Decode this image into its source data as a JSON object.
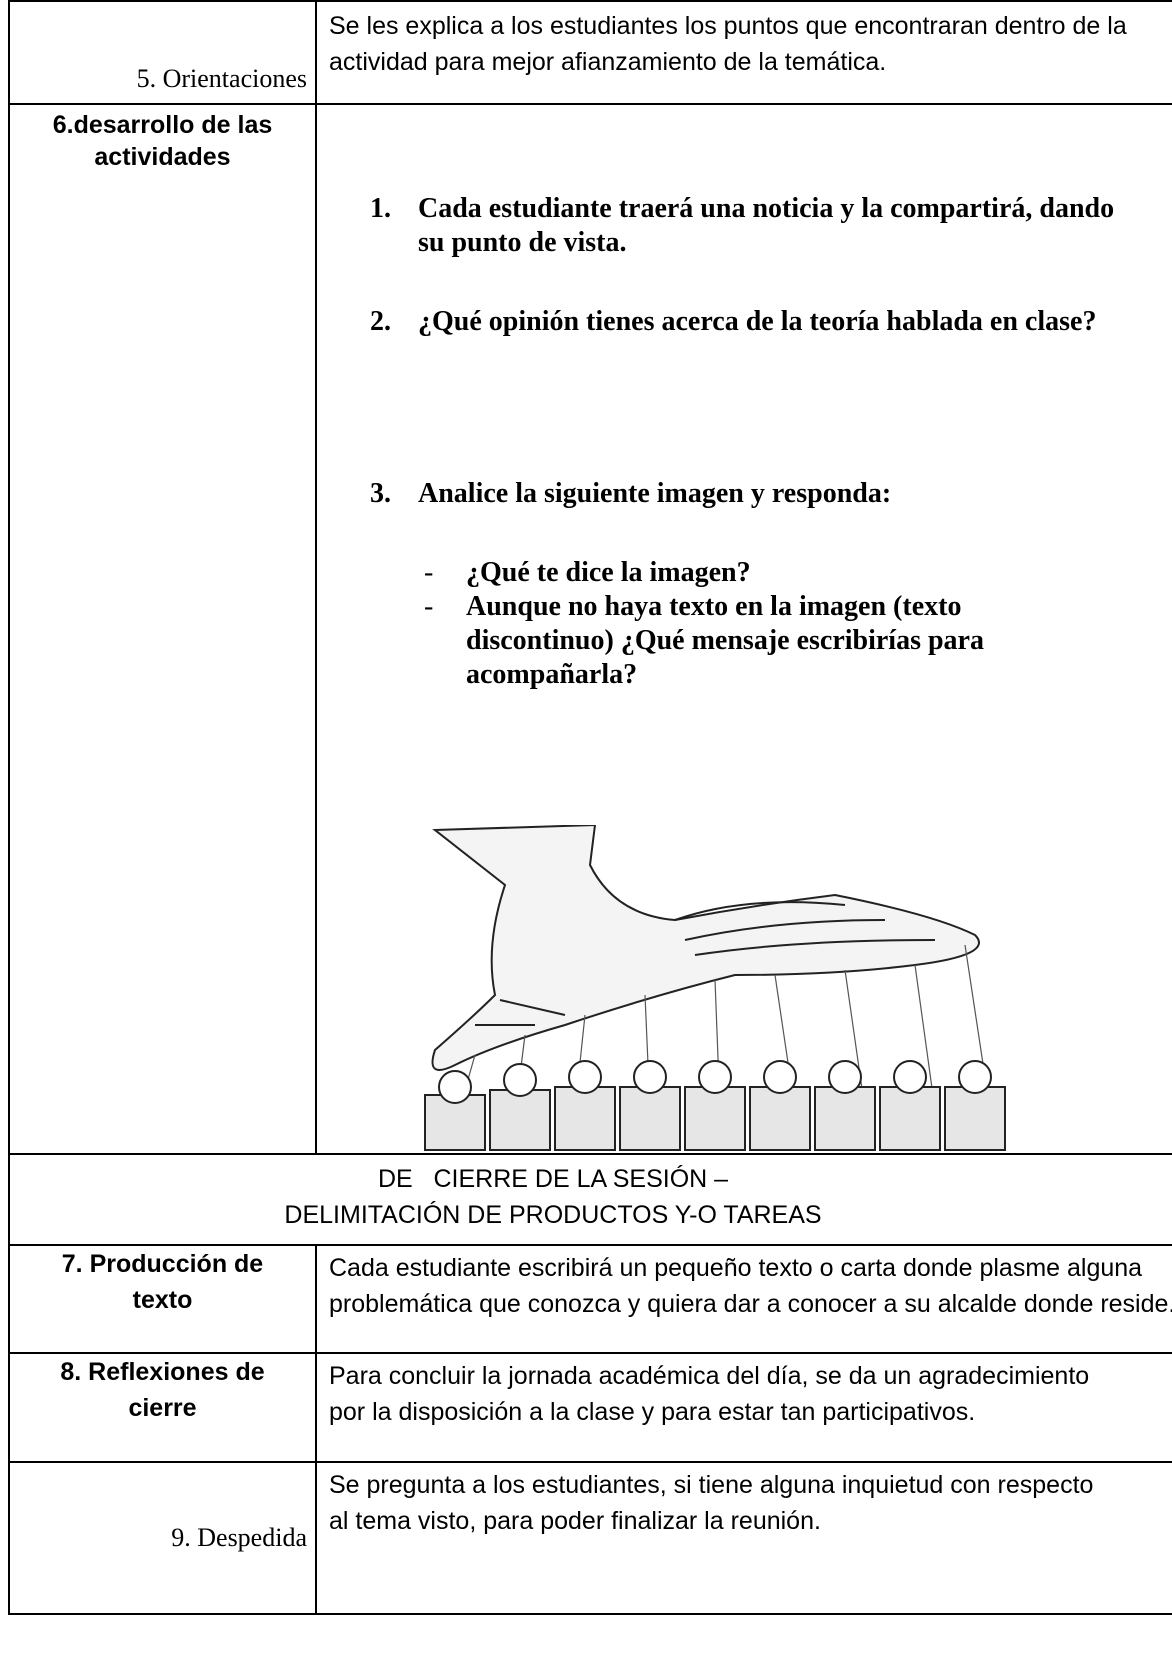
{
  "table": {
    "rows": [
      {
        "label": "5. Orientaciones",
        "content": "Se les explica a los estudiantes los puntos que encontraran dentro de la actividad para mejor afianzamiento de la temática."
      },
      {
        "label": "6.desarrollo de las actividades",
        "items": [
          {
            "number": "1.",
            "text": "Cada estudiante traerá una noticia y la compartirá, dando su punto de vista."
          },
          {
            "number": "2.",
            "text": "¿Qué opinión tienes acerca de la teoría hablada en clase?"
          },
          {
            "number": "3.",
            "text": "Analice la siguiente imagen y responda:"
          }
        ],
        "sub_items": [
          {
            "bullet": "-",
            "text": "¿Qué te dice la imagen?"
          },
          {
            "bullet": "-",
            "text": "Aunque no haya texto en la imagen (texto discontinuo) ¿Qué mensaje escribirías para acompañarla?"
          }
        ]
      },
      {
        "heading": [
          "DE   CIERRE DE LA SESIÓN –",
          "DELIMITACIÓN DE PRODUCTOS Y-O TAREAS"
        ]
      },
      {
        "label": "7. Producción de texto",
        "content": "Cada estudiante escribirá un pequeño texto o carta donde plasme alguna problemática que conozca y quiera dar a conocer a su alcalde donde reside."
      },
      {
        "label": "8. Reflexiones de cierre",
        "content": "Para concluir la jornada académica del día, se da un agradecimiento por la disposición a la clase y para estar tan participativos."
      },
      {
        "label": "9. Despedida",
        "content": "Se pregunta a los estudiantes, si tiene alguna inquietud con respecto al tema visto, para poder finalizar la reunión."
      }
    ]
  }
}
